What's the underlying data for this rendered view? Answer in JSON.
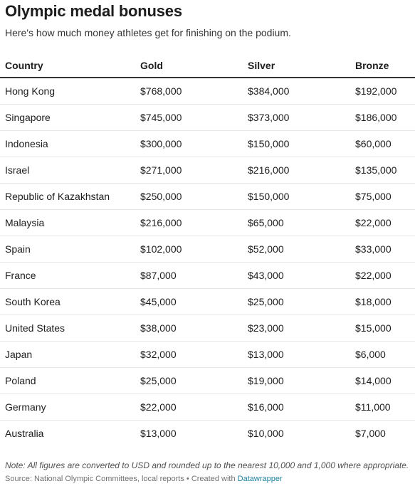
{
  "title": "Olympic medal bonuses",
  "subtitle": "Here's how much money athletes get for finishing on the podium.",
  "table": {
    "columns": [
      "Country",
      "Gold",
      "Silver",
      "Bronze"
    ],
    "rows": [
      [
        "Hong Kong",
        "$768,000",
        "$384,000",
        "$192,000"
      ],
      [
        "Singapore",
        "$745,000",
        "$373,000",
        "$186,000"
      ],
      [
        "Indonesia",
        "$300,000",
        "$150,000",
        "$60,000"
      ],
      [
        "Israel",
        "$271,000",
        "$216,000",
        "$135,000"
      ],
      [
        "Republic of Kazakhstan",
        "$250,000",
        "$150,000",
        "$75,000"
      ],
      [
        "Malaysia",
        "$216,000",
        "$65,000",
        "$22,000"
      ],
      [
        "Spain",
        "$102,000",
        "$52,000",
        "$33,000"
      ],
      [
        "France",
        "$87,000",
        "$43,000",
        "$22,000"
      ],
      [
        "South Korea",
        "$45,000",
        "$25,000",
        "$18,000"
      ],
      [
        "United States",
        "$38,000",
        "$23,000",
        "$15,000"
      ],
      [
        "Japan",
        "$32,000",
        "$13,000",
        "$6,000"
      ],
      [
        "Poland",
        "$25,000",
        "$19,000",
        "$14,000"
      ],
      [
        "Germany",
        "$22,000",
        "$16,000",
        "$11,000"
      ],
      [
        "Australia",
        "$13,000",
        "$10,000",
        "$7,000"
      ]
    ]
  },
  "footer": {
    "note": "Note: All figures are converted to USD and rounded up to the nearest 10,000 and 1,000 where appropriate.",
    "source_text": "Source: National Olympic Committees, local reports • Created with ",
    "source_link": "Datawrapper"
  },
  "colors": {
    "link": "#1d81a2",
    "header_rule": "#333333",
    "row_rule": "#e6e6e6"
  }
}
